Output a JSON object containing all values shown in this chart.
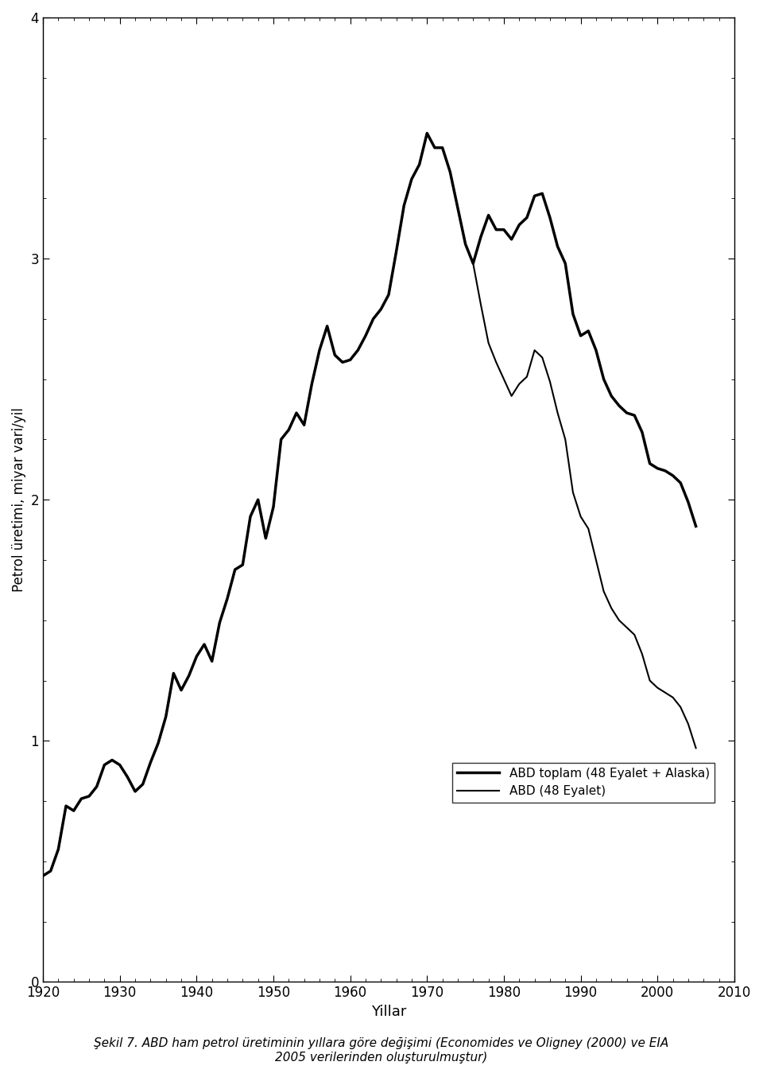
{
  "title": "",
  "xlabel": "Yillar",
  "ylabel": "Petrol üretimi, miyar vari/yil",
  "xlim": [
    1920,
    2010
  ],
  "ylim": [
    0,
    4
  ],
  "yticks": [
    0,
    1,
    2,
    3,
    4
  ],
  "xticks": [
    1920,
    1930,
    1940,
    1950,
    1960,
    1970,
    1980,
    1990,
    2000,
    2010
  ],
  "caption": "Şekil 7. ABD ham petrol üretiminin yıllara göre değişimi (Economides ve Oligney (2000) ve EIA\n2005 verilerinden oluşturulmuştur)",
  "legend_total": "ABD toplam (48 Eyalet + Alaska)",
  "legend_48": "ABD (48 Eyalet)",
  "background_color": "#ffffff",
  "line_color": "#000000",
  "total_linewidth": 2.5,
  "states48_linewidth": 1.5,
  "years_total": [
    1920,
    1921,
    1922,
    1923,
    1924,
    1925,
    1926,
    1927,
    1928,
    1929,
    1930,
    1931,
    1932,
    1933,
    1934,
    1935,
    1936,
    1937,
    1938,
    1939,
    1940,
    1941,
    1942,
    1943,
    1944,
    1945,
    1946,
    1947,
    1948,
    1949,
    1950,
    1951,
    1952,
    1953,
    1954,
    1955,
    1956,
    1957,
    1958,
    1959,
    1960,
    1961,
    1962,
    1963,
    1964,
    1965,
    1966,
    1967,
    1968,
    1969,
    1970,
    1971,
    1972,
    1973,
    1974,
    1975,
    1976,
    1977,
    1978,
    1979,
    1980,
    1981,
    1982,
    1983,
    1984,
    1985,
    1986,
    1987,
    1988,
    1989,
    1990,
    1991,
    1992,
    1993,
    1994,
    1995,
    1996,
    1997,
    1998,
    1999,
    2000,
    2001,
    2002,
    2003,
    2004,
    2005
  ],
  "values_total": [
    0.44,
    0.46,
    0.55,
    0.73,
    0.71,
    0.76,
    0.77,
    0.81,
    0.9,
    0.92,
    0.9,
    0.85,
    0.79,
    0.82,
    0.91,
    0.99,
    1.1,
    1.28,
    1.21,
    1.27,
    1.35,
    1.4,
    1.33,
    1.49,
    1.59,
    1.71,
    1.73,
    1.93,
    2.0,
    1.84,
    1.97,
    2.25,
    2.29,
    2.36,
    2.31,
    2.48,
    2.62,
    2.72,
    2.6,
    2.57,
    2.58,
    2.62,
    2.68,
    2.75,
    2.79,
    2.85,
    3.03,
    3.22,
    3.33,
    3.39,
    3.52,
    3.46,
    3.46,
    3.36,
    3.21,
    3.06,
    2.98,
    3.09,
    3.18,
    3.12,
    3.12,
    3.08,
    3.14,
    3.17,
    3.26,
    3.27,
    3.17,
    3.05,
    2.98,
    2.77,
    2.68,
    2.7,
    2.62,
    2.5,
    2.43,
    2.39,
    2.36,
    2.35,
    2.28,
    2.15,
    2.13,
    2.12,
    2.1,
    2.07,
    1.99,
    1.89
  ],
  "years_48": [
    1920,
    1921,
    1922,
    1923,
    1924,
    1925,
    1926,
    1927,
    1928,
    1929,
    1930,
    1931,
    1932,
    1933,
    1934,
    1935,
    1936,
    1937,
    1938,
    1939,
    1940,
    1941,
    1942,
    1943,
    1944,
    1945,
    1946,
    1947,
    1948,
    1949,
    1950,
    1951,
    1952,
    1953,
    1954,
    1955,
    1956,
    1957,
    1958,
    1959,
    1960,
    1961,
    1962,
    1963,
    1964,
    1965,
    1966,
    1967,
    1968,
    1969,
    1970,
    1971,
    1972,
    1973,
    1974,
    1975,
    1976,
    1977,
    1978,
    1979,
    1980,
    1981,
    1982,
    1983,
    1984,
    1985,
    1986,
    1987,
    1988,
    1989,
    1990,
    1991,
    1992,
    1993,
    1994,
    1995,
    1996,
    1997,
    1998,
    1999,
    2000,
    2001,
    2002,
    2003,
    2004,
    2005
  ],
  "values_48": [
    0.44,
    0.46,
    0.55,
    0.73,
    0.71,
    0.76,
    0.77,
    0.81,
    0.9,
    0.92,
    0.9,
    0.85,
    0.79,
    0.82,
    0.91,
    0.99,
    1.1,
    1.28,
    1.21,
    1.27,
    1.35,
    1.4,
    1.33,
    1.49,
    1.59,
    1.71,
    1.73,
    1.93,
    2.0,
    1.84,
    1.97,
    2.25,
    2.29,
    2.36,
    2.31,
    2.48,
    2.62,
    2.72,
    2.6,
    2.57,
    2.58,
    2.62,
    2.68,
    2.75,
    2.79,
    2.85,
    3.03,
    3.22,
    3.33,
    3.39,
    3.52,
    3.46,
    3.46,
    3.36,
    3.21,
    3.06,
    2.98,
    2.81,
    2.65,
    2.57,
    2.5,
    2.43,
    2.48,
    2.51,
    2.62,
    2.59,
    2.49,
    2.36,
    2.25,
    2.03,
    1.93,
    1.88,
    1.75,
    1.62,
    1.55,
    1.5,
    1.47,
    1.44,
    1.36,
    1.25,
    1.22,
    1.2,
    1.18,
    1.14,
    1.07,
    0.97
  ]
}
